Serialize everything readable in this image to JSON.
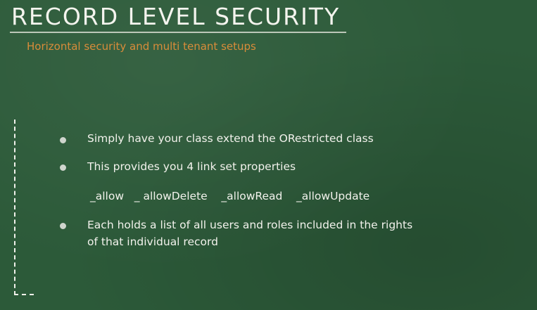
{
  "slide": {
    "title": "RECORD LEVEL SECURITY",
    "subtitle": "Horizontal security and multi tenant setups",
    "bullets": [
      "Simply have your class extend the ORestricted class",
      "This provides you 4 link set properties",
      "Each holds a list of all users and roles included in the rights"
    ],
    "properties_line": "_allow   _ allowDelete    _allowRead    _allowUpdate",
    "bullet3_continuation": "of that individual record"
  }
}
